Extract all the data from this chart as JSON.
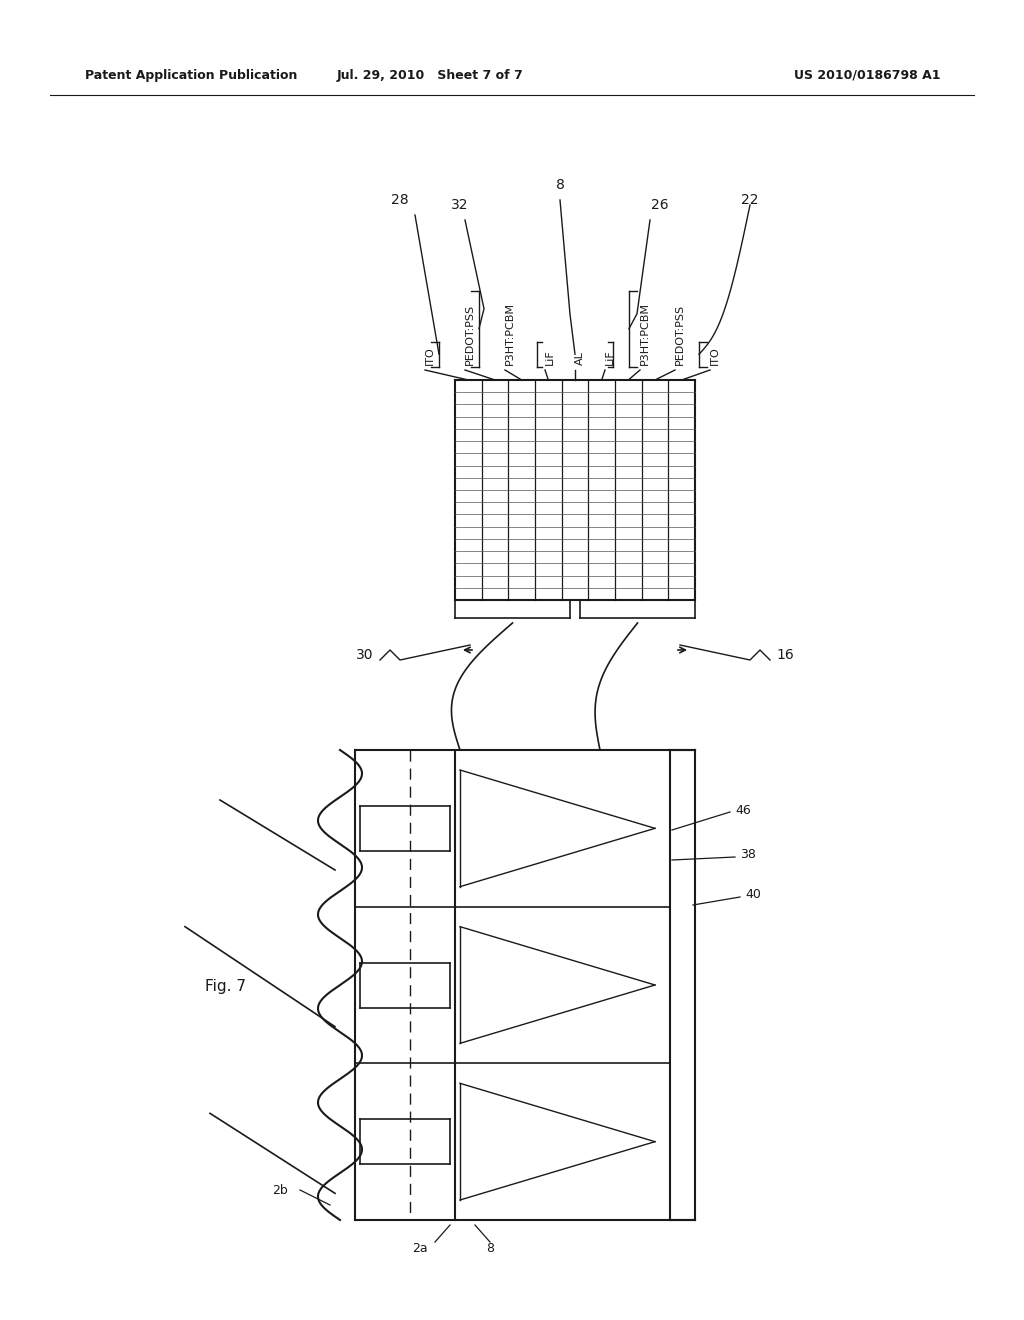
{
  "header_left": "Patent Application Publication",
  "header_mid": "Jul. 29, 2010   Sheet 7 of 7",
  "header_right": "US 2010/0186798 A1",
  "fig_label": "Fig. 7",
  "background_color": "#ffffff",
  "line_color": "#1a1a1a",
  "layer_labels": [
    "ITO",
    "PEDOT:PSS",
    "P3HT:PCBM",
    "LiF",
    "AL",
    "LiF",
    "P3HT:PCBM",
    "PEDOT:PSS",
    "ITO"
  ],
  "ref_numbers_top": [
    "28",
    "32",
    "8",
    "26",
    "22"
  ],
  "ref_numbers_bottom": [
    "2b",
    "2a",
    "8",
    "46",
    "38",
    "40"
  ],
  "ref_numbers_mid": [
    "30",
    "16"
  ]
}
